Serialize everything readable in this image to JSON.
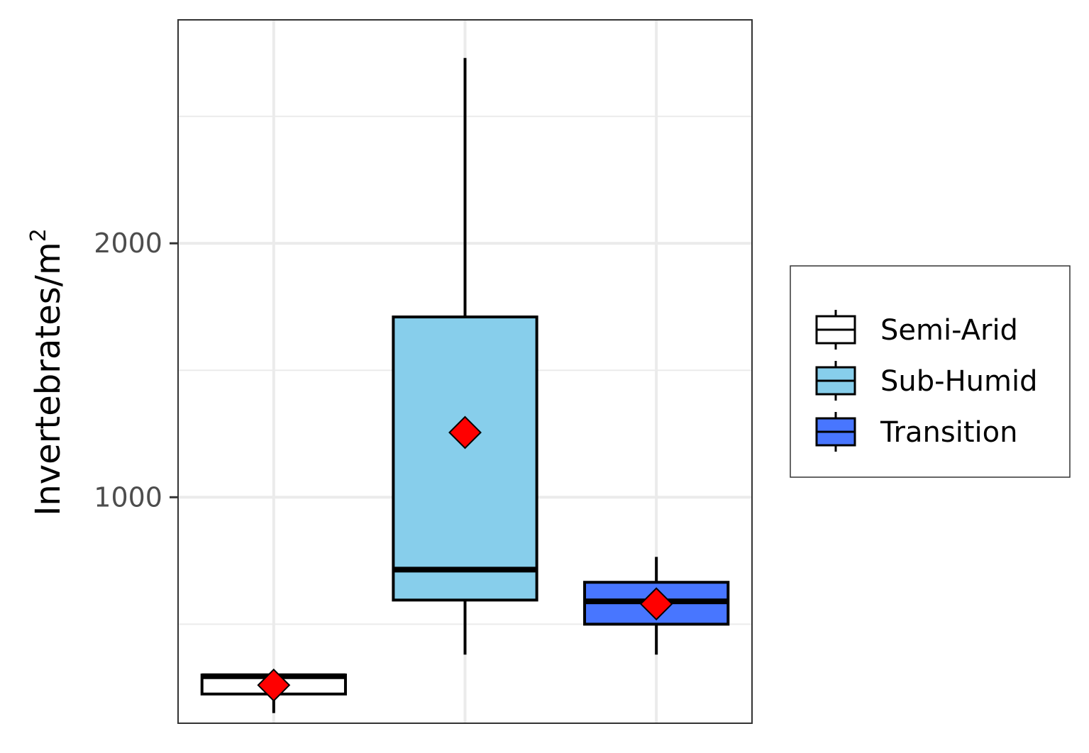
{
  "chart_data": {
    "type": "box",
    "ylabel": "Invertebrates/m",
    "ylabel_superscript": "2",
    "ylim": [
      110,
      2880
    ],
    "y_major_ticks": [
      1000,
      2000
    ],
    "y_minor_gridlines": [
      500,
      1500,
      2500
    ],
    "grid": true,
    "legend_position": "right",
    "mean_marker": {
      "shape": "diamond",
      "color": "#ff0000"
    },
    "series": [
      {
        "name": "Semi-Arid",
        "color": "#ffffff",
        "whisker_low": 150,
        "q1": 225,
        "median": 295,
        "q3": 300,
        "whisker_high": 305,
        "mean": 260
      },
      {
        "name": "Sub-Humid",
        "color": "#87ceeb",
        "whisker_low": 380,
        "q1": 595,
        "median": 715,
        "q3": 1710,
        "whisker_high": 2730,
        "mean": 1255
      },
      {
        "name": "Transition",
        "color": "#4876ff",
        "whisker_low": 380,
        "q1": 500,
        "median": 590,
        "q3": 665,
        "whisker_high": 765,
        "mean": 580
      }
    ]
  }
}
